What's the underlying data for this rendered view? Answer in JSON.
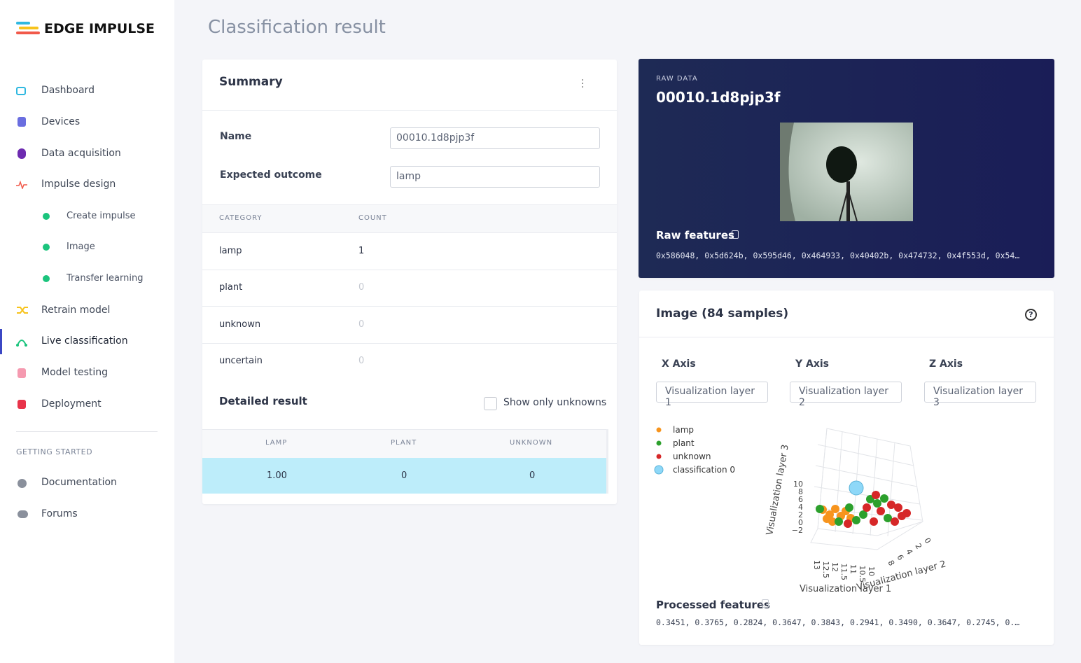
{
  "sidebar": {
    "logo": "EDGE IMPULSE",
    "nav": [
      {
        "label": "Dashboard"
      },
      {
        "label": "Devices"
      },
      {
        "label": "Data acquisition"
      },
      {
        "label": "Impulse design"
      },
      {
        "label": "Create impulse"
      },
      {
        "label": "Image"
      },
      {
        "label": "Transfer learning"
      },
      {
        "label": "Retrain model"
      },
      {
        "label": "Live classification"
      },
      {
        "label": "Model testing"
      },
      {
        "label": "Deployment"
      }
    ],
    "section": "GETTING STARTED",
    "links": [
      {
        "label": "Documentation"
      },
      {
        "label": "Forums"
      }
    ]
  },
  "header": {
    "title": "Classification result"
  },
  "summary": {
    "title": "Summary",
    "fields": [
      {
        "label": "Name",
        "value": "00010.1d8pjp3f"
      },
      {
        "label": "Expected outcome",
        "value": "lamp"
      }
    ],
    "table": {
      "columns": [
        "CATEGORY",
        "COUNT"
      ],
      "rows": [
        [
          "lamp",
          "1"
        ],
        [
          "plant",
          "0"
        ],
        [
          "unknown",
          "0"
        ],
        [
          "uncertain",
          "0"
        ]
      ]
    }
  },
  "detailed": {
    "title": "Detailed result",
    "checkbox": "Show only unknowns",
    "columns": [
      "LAMP",
      "PLANT",
      "UNKNOWN"
    ],
    "rows": [
      [
        "1.00",
        "0",
        "0"
      ]
    ]
  },
  "raw": {
    "label": "RAW DATA",
    "name": "00010.1d8pjp3f",
    "features_title": "Raw features",
    "features": "0x586048, 0x5d624b, 0x595d46, 0x464933, 0x40402b, 0x474732, 0x4f553d, 0x54…"
  },
  "explorer": {
    "title": "Image (84 samples)",
    "axes": [
      {
        "label": "X Axis",
        "select": "Visualization layer 1"
      },
      {
        "label": "Y Axis",
        "select": "Visualization layer 2"
      },
      {
        "label": "Z Axis",
        "select": "Visualization layer 3"
      }
    ],
    "legend": [
      {
        "name": "lamp",
        "color": "#f7941d"
      },
      {
        "name": "plant",
        "color": "#2ca02c"
      },
      {
        "name": "unknown",
        "color": "#d62728"
      },
      {
        "name": "classification 0",
        "color": "#8ed8f8"
      }
    ],
    "zticks": [
      "10",
      "8",
      "6",
      "4",
      "2",
      "0",
      "−2"
    ],
    "xticks": [
      "13",
      "12.5",
      "12",
      "11.5",
      "11",
      "10.5",
      "10"
    ],
    "yticks": [
      "8",
      "6",
      "4",
      "2",
      "0"
    ],
    "ztitle": "Visualization layer 3",
    "xtitle": "Visualization layer 1",
    "ytitle": "Visualization layer 2",
    "features_title": "Processed features",
    "features": "0.3451, 0.3765, 0.2824, 0.3647, 0.3843, 0.2941, 0.3490, 0.3647, 0.2745, 0.…"
  }
}
